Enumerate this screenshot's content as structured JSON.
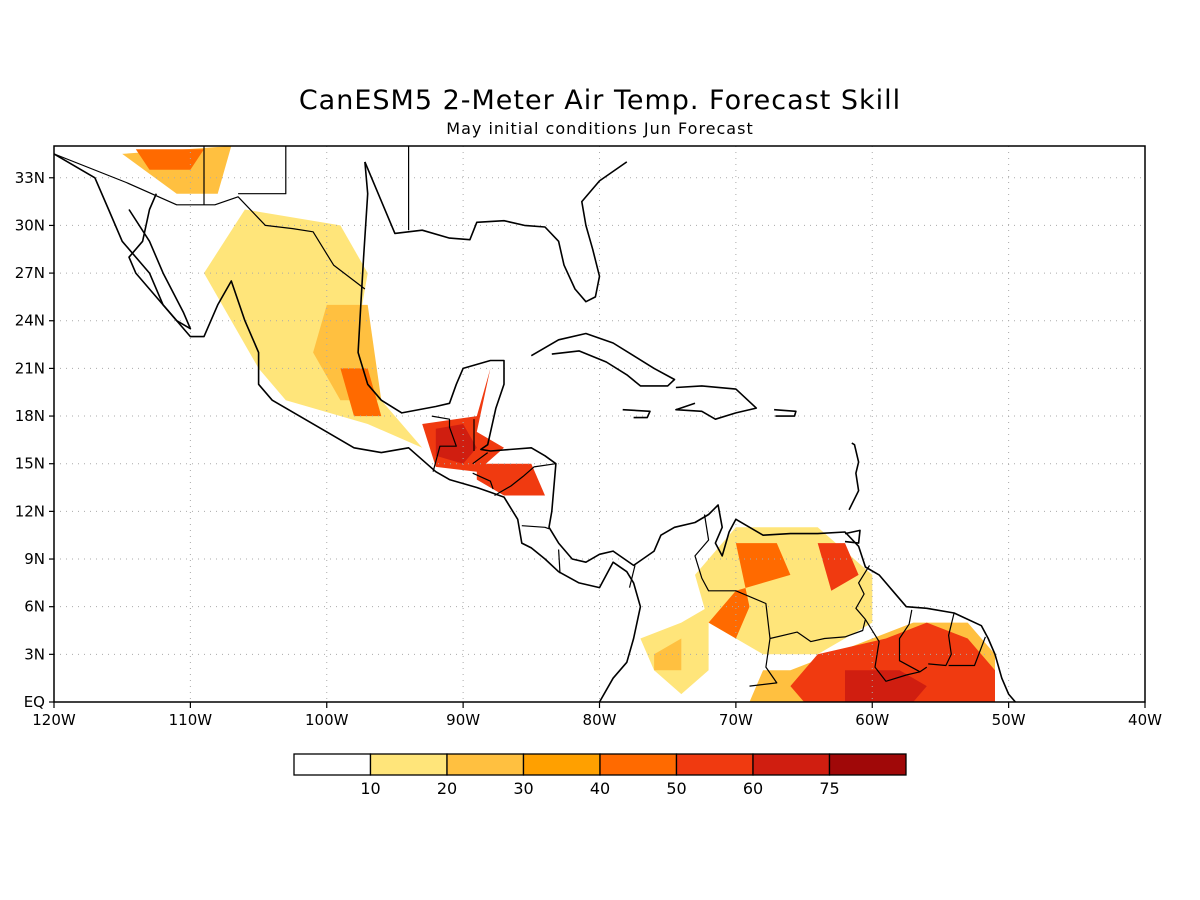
{
  "title": "CanESM5 2-Meter Air Temp. Forecast Skill",
  "subtitle": "May initial conditions  Jun Forecast",
  "map": {
    "lon_range": [
      -120,
      -40
    ],
    "lat_range": [
      0,
      35
    ],
    "grid": true,
    "lon_ticks": [
      "120W",
      "110W",
      "100W",
      "90W",
      "80W",
      "70W",
      "60W",
      "50W",
      "40W"
    ],
    "lat_ticks": [
      "EQ",
      "3N",
      "6N",
      "9N",
      "12N",
      "15N",
      "18N",
      "21N",
      "24N",
      "27N",
      "30N",
      "33N"
    ]
  },
  "colorbar": {
    "labels": [
      "10",
      "20",
      "30",
      "40",
      "50",
      "60",
      "75"
    ],
    "colors": [
      "#ffffff",
      "#ffe57a",
      "#ffc040",
      "#ffa000",
      "#ff6a00",
      "#f03a10",
      "#d01e10",
      "#a00808"
    ]
  },
  "skill_regions": [
    {
      "level": 2,
      "lonlat": [
        [
          -115,
          34.5
        ],
        [
          -107,
          35
        ],
        [
          -108,
          32
        ],
        [
          -111,
          32
        ]
      ]
    },
    {
      "level": 4,
      "lonlat": [
        [
          -114,
          34.8
        ],
        [
          -109,
          34.8
        ],
        [
          -110,
          33.5
        ],
        [
          -113,
          33.5
        ]
      ]
    },
    {
      "level": 1,
      "lonlat": [
        [
          -106,
          31
        ],
        [
          -99,
          30
        ],
        [
          -97,
          27
        ],
        [
          -98,
          22
        ],
        [
          -96,
          19
        ],
        [
          -93,
          16
        ],
        [
          -97,
          17.5
        ],
        [
          -103,
          19
        ],
        [
          -105,
          21
        ],
        [
          -107,
          24
        ],
        [
          -109,
          27
        ]
      ]
    },
    {
      "level": 2,
      "lonlat": [
        [
          -100,
          25
        ],
        [
          -97,
          25
        ],
        [
          -96,
          19
        ],
        [
          -99,
          19
        ],
        [
          -101,
          22
        ]
      ]
    },
    {
      "level": 4,
      "lonlat": [
        [
          -99,
          21
        ],
        [
          -97,
          21
        ],
        [
          -96,
          18
        ],
        [
          -98,
          18
        ]
      ]
    },
    {
      "level": 5,
      "lonlat": [
        [
          -93,
          17.5
        ],
        [
          -89,
          18
        ],
        [
          -88,
          21
        ],
        [
          -89,
          17
        ],
        [
          -87,
          16
        ],
        [
          -89,
          14.5
        ],
        [
          -92,
          14.8
        ]
      ]
    },
    {
      "level": 6,
      "lonlat": [
        [
          -92,
          17.2
        ],
        [
          -90,
          17.5
        ],
        [
          -89,
          16
        ],
        [
          -90,
          15
        ],
        [
          -92,
          15.5
        ]
      ]
    },
    {
      "level": 5,
      "lonlat": [
        [
          -89,
          15
        ],
        [
          -85,
          15
        ],
        [
          -84,
          13
        ],
        [
          -87,
          13
        ],
        [
          -89,
          14
        ]
      ]
    },
    {
      "level": 1,
      "lonlat": [
        [
          -77,
          4
        ],
        [
          -74,
          5
        ],
        [
          -72,
          6
        ],
        [
          -72,
          2
        ],
        [
          -74,
          0.5
        ],
        [
          -76,
          2
        ]
      ]
    },
    {
      "level": 2,
      "lonlat": [
        [
          -76,
          3
        ],
        [
          -74,
          4
        ],
        [
          -74,
          2
        ],
        [
          -76,
          2
        ]
      ]
    },
    {
      "level": 1,
      "lonlat": [
        [
          -73,
          8
        ],
        [
          -70,
          11
        ],
        [
          -64,
          11
        ],
        [
          -60,
          8
        ],
        [
          -60,
          5
        ],
        [
          -64,
          3
        ],
        [
          -68,
          3
        ],
        [
          -72,
          5
        ]
      ]
    },
    {
      "level": 4,
      "lonlat": [
        [
          -70,
          10
        ],
        [
          -67,
          10
        ],
        [
          -66,
          8
        ],
        [
          -70,
          7
        ],
        [
          -72,
          5
        ],
        [
          -70,
          4
        ],
        [
          -69,
          6
        ]
      ]
    },
    {
      "level": 5,
      "lonlat": [
        [
          -64,
          10
        ],
        [
          -62,
          10
        ],
        [
          -61,
          8
        ],
        [
          -63,
          7
        ]
      ]
    },
    {
      "level": 2,
      "lonlat": [
        [
          -66,
          2
        ],
        [
          -60,
          4
        ],
        [
          -57,
          5
        ],
        [
          -53,
          5
        ],
        [
          -51,
          3
        ],
        [
          -51,
          0
        ],
        [
          -69,
          0
        ],
        [
          -68,
          2
        ]
      ]
    },
    {
      "level": 5,
      "lonlat": [
        [
          -64,
          3
        ],
        [
          -59,
          4
        ],
        [
          -56,
          5
        ],
        [
          -53,
          4
        ],
        [
          -51,
          2
        ],
        [
          -51,
          0
        ],
        [
          -65,
          0
        ],
        [
          -66,
          1
        ]
      ]
    },
    {
      "level": 6,
      "lonlat": [
        [
          -62,
          2
        ],
        [
          -58,
          2
        ],
        [
          -56,
          1
        ],
        [
          -57,
          0
        ],
        [
          -62,
          0
        ]
      ]
    }
  ],
  "coastlines": [
    [
      [
        -120,
        34.5
      ],
      [
        -117,
        33
      ],
      [
        -116,
        31
      ],
      [
        -115,
        29
      ],
      [
        -113,
        27
      ],
      [
        -112,
        25
      ],
      [
        -110,
        23
      ],
      [
        -109,
        23
      ],
      [
        -108,
        25
      ],
      [
        -107,
        26.5
      ],
      [
        -106,
        24
      ],
      [
        -105,
        22
      ],
      [
        -105,
        20
      ],
      [
        -104,
        19
      ],
      [
        -102,
        18
      ],
      [
        -100,
        17
      ],
      [
        -98,
        16
      ],
      [
        -96,
        15.7
      ],
      [
        -94,
        16
      ],
      [
        -92,
        14.5
      ],
      [
        -91,
        14
      ],
      [
        -89,
        13.5
      ],
      [
        -88,
        13.2
      ],
      [
        -87,
        12.9
      ],
      [
        -86,
        11.5
      ],
      [
        -85.7,
        10
      ],
      [
        -85,
        9.7
      ],
      [
        -84,
        9
      ],
      [
        -83,
        8.2
      ],
      [
        -81.5,
        7.5
      ],
      [
        -80,
        7.2
      ],
      [
        -79,
        8.8
      ],
      [
        -78,
        8.2
      ],
      [
        -77.5,
        7.5
      ],
      [
        -77,
        6
      ],
      [
        -77.5,
        4
      ],
      [
        -78,
        2.5
      ],
      [
        -79,
        1.5
      ],
      [
        -80,
        0
      ]
    ],
    [
      [
        -112.5,
        32
      ],
      [
        -113,
        31
      ],
      [
        -113.5,
        29
      ],
      [
        -114.5,
        28
      ],
      [
        -114,
        27
      ],
      [
        -112,
        25
      ],
      [
        -111,
        24
      ],
      [
        -110,
        23.5
      ],
      [
        -110.5,
        24.5
      ],
      [
        -112,
        27
      ],
      [
        -113,
        29
      ],
      [
        -114.5,
        31
      ]
    ],
    [
      [
        -97.2,
        34
      ],
      [
        -97,
        32
      ],
      [
        -97.3,
        28
      ],
      [
        -97.5,
        25
      ],
      [
        -97.7,
        22
      ],
      [
        -97,
        20
      ],
      [
        -96,
        19
      ],
      [
        -94.5,
        18.2
      ],
      [
        -92,
        18.6
      ],
      [
        -91,
        18.8
      ],
      [
        -90.5,
        20
      ],
      [
        -90,
        21
      ],
      [
        -88,
        21.5
      ],
      [
        -87,
        21.5
      ],
      [
        -87,
        20
      ],
      [
        -87.6,
        18.5
      ],
      [
        -88.2,
        16.2
      ],
      [
        -88.7,
        15.9
      ],
      [
        -88,
        15.8
      ],
      [
        -85,
        16
      ],
      [
        -84,
        15.5
      ],
      [
        -83.2,
        15
      ],
      [
        -83.5,
        12
      ],
      [
        -83.7,
        11
      ],
      [
        -83,
        10
      ],
      [
        -82,
        9
      ],
      [
        -81,
        8.8
      ],
      [
        -80,
        9.3
      ],
      [
        -79,
        9.5
      ],
      [
        -77.5,
        8.6
      ],
      [
        -76,
        9.5
      ],
      [
        -75.5,
        10.5
      ],
      [
        -74.5,
        11
      ],
      [
        -73,
        11.3
      ],
      [
        -72,
        11.8
      ],
      [
        -71.3,
        12.4
      ],
      [
        -71,
        11
      ],
      [
        -71.5,
        10
      ],
      [
        -71,
        9.2
      ],
      [
        -70.5,
        10.7
      ],
      [
        -70,
        11.5
      ],
      [
        -68,
        10.5
      ],
      [
        -66,
        10.6
      ],
      [
        -64,
        10.6
      ],
      [
        -62,
        10.7
      ],
      [
        -61,
        9.8
      ],
      [
        -60.5,
        8.5
      ],
      [
        -59.5,
        8
      ],
      [
        -58.5,
        7
      ],
      [
        -57.5,
        6
      ],
      [
        -56,
        5.9
      ],
      [
        -54,
        5.6
      ],
      [
        -52,
        4.8
      ],
      [
        -51.5,
        4
      ],
      [
        -51,
        3
      ],
      [
        -50.5,
        1.5
      ],
      [
        -50,
        0.5
      ],
      [
        -49.5,
        0
      ]
    ],
    [
      [
        -97.2,
        34
      ],
      [
        -95,
        29.5
      ],
      [
        -93,
        29.7
      ],
      [
        -91,
        29.2
      ],
      [
        -89.5,
        29.1
      ],
      [
        -89,
        30.2
      ],
      [
        -87,
        30.3
      ],
      [
        -85.5,
        30
      ],
      [
        -84,
        29.9
      ],
      [
        -83,
        29
      ],
      [
        -82.6,
        27.5
      ],
      [
        -81.8,
        26
      ],
      [
        -81,
        25.2
      ],
      [
        -80.3,
        25.5
      ],
      [
        -80,
        26.8
      ],
      [
        -80.5,
        28.5
      ],
      [
        -81,
        30
      ],
      [
        -81.3,
        31.5
      ],
      [
        -80,
        32.8
      ],
      [
        -78,
        34
      ]
    ],
    [
      [
        -85,
        21.8
      ],
      [
        -83,
        22.8
      ],
      [
        -81,
        23.2
      ],
      [
        -79,
        22.6
      ],
      [
        -77.5,
        21.8
      ],
      [
        -76,
        21
      ],
      [
        -74.5,
        20.3
      ],
      [
        -75,
        19.9
      ],
      [
        -77,
        19.9
      ],
      [
        -78,
        20.6
      ],
      [
        -79.5,
        21.4
      ],
      [
        -81.5,
        22.1
      ],
      [
        -83.5,
        21.9
      ]
    ],
    [
      [
        -74.4,
        19.8
      ],
      [
        -72.5,
        19.9
      ],
      [
        -70,
        19.7
      ],
      [
        -68.5,
        18.5
      ],
      [
        -70,
        18.2
      ],
      [
        -71.5,
        17.8
      ],
      [
        -72.5,
        18.3
      ],
      [
        -74.4,
        18.4
      ],
      [
        -73,
        18.8
      ]
    ],
    [
      [
        -78.3,
        18.4
      ],
      [
        -76.3,
        18.3
      ],
      [
        -76.5,
        17.9
      ],
      [
        -77.5,
        17.9
      ]
    ],
    [
      [
        -67.2,
        18.4
      ],
      [
        -65.6,
        18.3
      ],
      [
        -65.7,
        18
      ],
      [
        -67.1,
        18
      ]
    ],
    [
      [
        -62,
        10.6
      ],
      [
        -60.9,
        10.8
      ],
      [
        -61,
        10
      ],
      [
        -62,
        10.1
      ]
    ],
    [
      [
        -61.5,
        16.3
      ],
      [
        -61.3,
        16.2
      ],
      [
        -61,
        15.1
      ],
      [
        -61.2,
        14.4
      ],
      [
        -61,
        13.3
      ],
      [
        -61.7,
        12.1
      ]
    ]
  ],
  "borders": [
    [
      [
        -120,
        34.5
      ],
      [
        -114.7,
        32.7
      ],
      [
        -111,
        31.3
      ],
      [
        -108.2,
        31.3
      ],
      [
        -106.5,
        31.8
      ],
      [
        -104.5,
        30
      ],
      [
        -102.5,
        29.8
      ],
      [
        -101,
        29.6
      ],
      [
        -99.5,
        27.5
      ],
      [
        -97.2,
        26
      ]
    ],
    [
      [
        -109,
        35
      ],
      [
        -109,
        31.3
      ]
    ],
    [
      [
        -103,
        35
      ],
      [
        -103,
        32
      ],
      [
        -106.5,
        32
      ]
    ],
    [
      [
        -94,
        35
      ],
      [
        -94,
        33.5
      ],
      [
        -94,
        29.7
      ]
    ],
    [
      [
        -92.3,
        18
      ],
      [
        -91,
        17.8
      ],
      [
        -91,
        17.3
      ],
      [
        -90.5,
        16.1
      ],
      [
        -91.7,
        16.1
      ],
      [
        -92.2,
        14.5
      ]
    ],
    [
      [
        -89.2,
        17.8
      ],
      [
        -89.2,
        15.8
      ]
    ],
    [
      [
        -89.3,
        15
      ],
      [
        -88.2,
        15.7
      ]
    ],
    [
      [
        -89.3,
        14.4
      ],
      [
        -88,
        13.9
      ],
      [
        -87.8,
        13.4
      ]
    ],
    [
      [
        -87.7,
        13
      ],
      [
        -86.5,
        13.6
      ],
      [
        -85.6,
        14.2
      ],
      [
        -84.8,
        14.8
      ],
      [
        -83.2,
        15
      ]
    ],
    [
      [
        -85.7,
        11.1
      ],
      [
        -84,
        11
      ],
      [
        -83.7,
        10.9
      ]
    ],
    [
      [
        -83,
        9.6
      ],
      [
        -82.9,
        8.1
      ]
    ],
    [
      [
        -77.4,
        8.6
      ],
      [
        -77.8,
        7.2
      ]
    ],
    [
      [
        -72.3,
        11.8
      ],
      [
        -72,
        10.2
      ],
      [
        -73,
        9.2
      ],
      [
        -72.5,
        7.8
      ],
      [
        -72,
        7
      ],
      [
        -70,
        7
      ],
      [
        -67.8,
        6.2
      ],
      [
        -67.5,
        4
      ],
      [
        -67.8,
        2.2
      ],
      [
        -67,
        1.2
      ],
      [
        -69,
        1
      ]
    ],
    [
      [
        -60.2,
        8.6
      ],
      [
        -61,
        7.5
      ],
      [
        -60.6,
        6.8
      ],
      [
        -61.2,
        5.9
      ],
      [
        -60.5,
        5.2
      ],
      [
        -60.7,
        4.5
      ],
      [
        -62,
        4.1
      ],
      [
        -63.5,
        4
      ],
      [
        -64.5,
        3.8
      ],
      [
        -65.5,
        4.4
      ],
      [
        -67.5,
        4
      ]
    ],
    [
      [
        -60.5,
        5.2
      ],
      [
        -59.5,
        3.8
      ],
      [
        -59.8,
        2.2
      ],
      [
        -59,
        1.3
      ],
      [
        -57.5,
        1.7
      ],
      [
        -56.5,
        1.9
      ],
      [
        -56,
        2.2
      ]
    ],
    [
      [
        -57.1,
        5.8
      ],
      [
        -57.3,
        4.9
      ],
      [
        -58,
        4
      ],
      [
        -58,
        2.6
      ],
      [
        -56.5,
        1.9
      ]
    ],
    [
      [
        -54,
        5.6
      ],
      [
        -54.4,
        4.2
      ],
      [
        -54.2,
        3
      ],
      [
        -54.6,
        2.3
      ],
      [
        -55.9,
        2.4
      ]
    ],
    [
      [
        -54.4,
        2.3
      ],
      [
        -52.5,
        2.3
      ],
      [
        -51.7,
        4.1
      ]
    ]
  ]
}
